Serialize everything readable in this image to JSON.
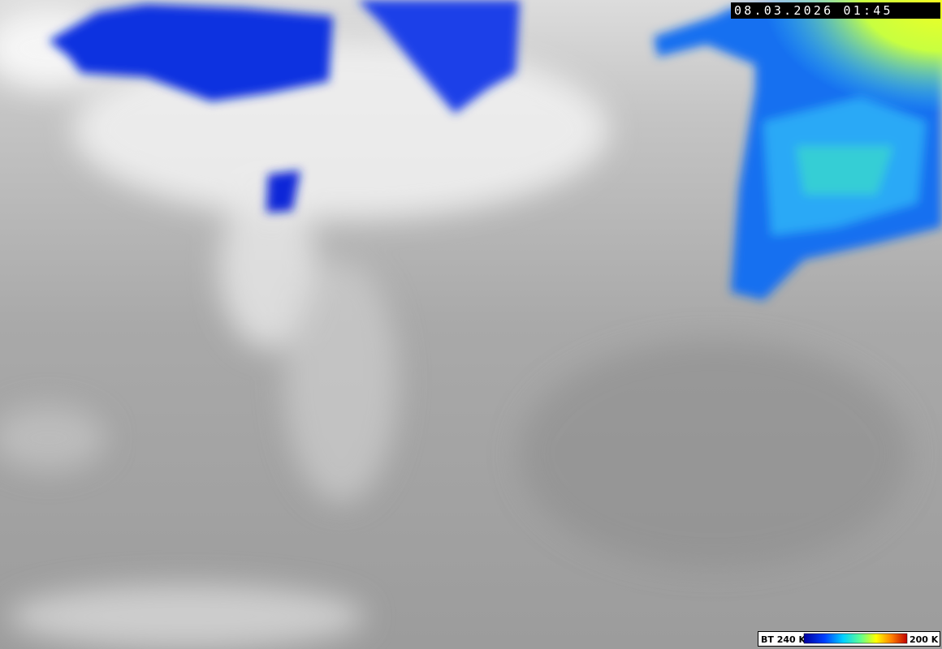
{
  "timestamp": "08.03.2026 01:45",
  "legend": {
    "min_label": "BT 240 K",
    "max_label": "200 K"
  }
}
